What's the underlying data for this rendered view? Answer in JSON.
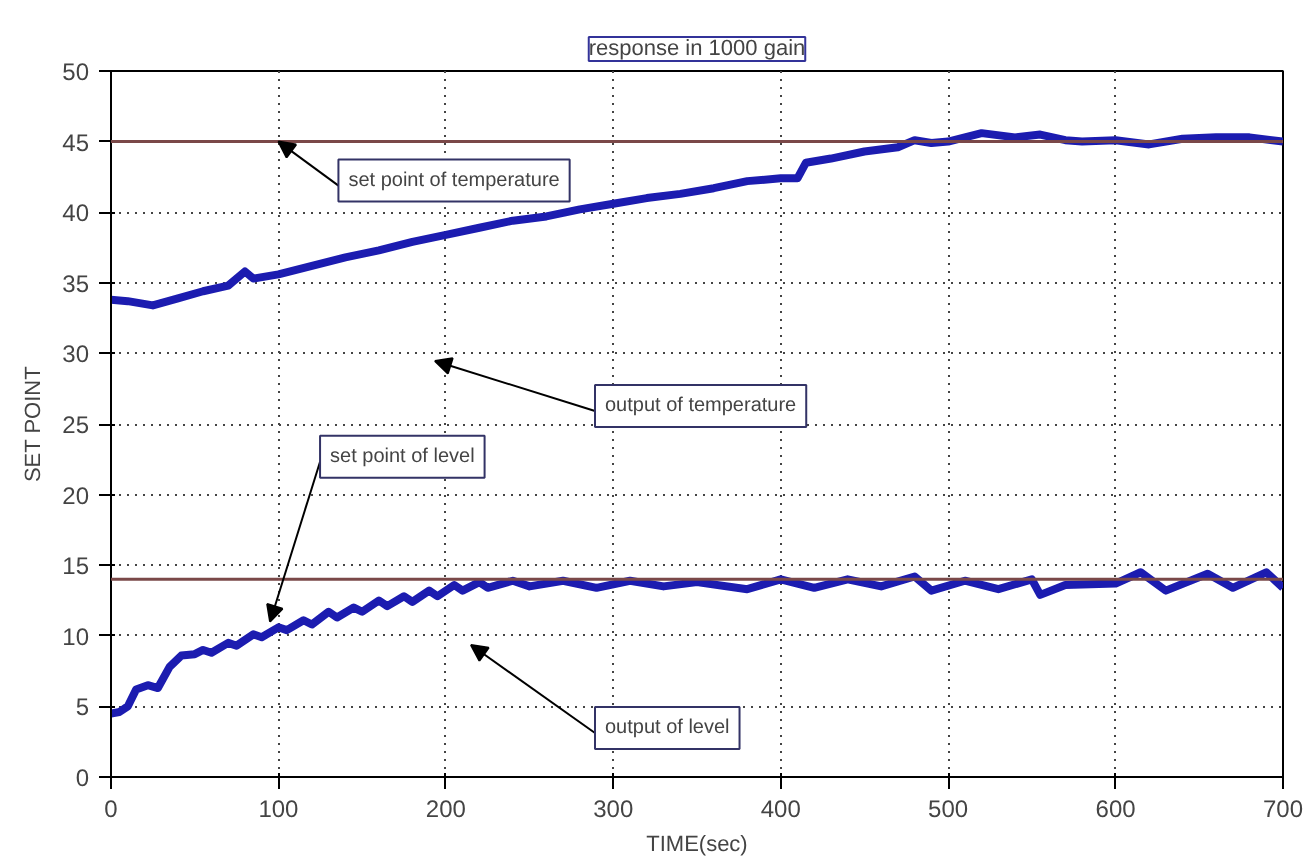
{
  "chart_data": {
    "type": "line",
    "title": "response in 1000 gain",
    "xlabel": "TIME(sec)",
    "ylabel": "SET POINT",
    "xlim": [
      0,
      700
    ],
    "ylim": [
      0,
      50
    ],
    "xticks": [
      0,
      100,
      200,
      300,
      400,
      500,
      600,
      700
    ],
    "yticks": [
      0,
      5,
      10,
      15,
      20,
      25,
      30,
      35,
      40,
      45,
      50
    ],
    "grid": true,
    "line_style": "solid",
    "marker": "none",
    "series": [
      {
        "color": "#1c1cb0",
        "x": [
          0,
          10,
          25,
          40,
          55,
          70,
          80,
          85,
          100,
          120,
          140,
          160,
          180,
          200,
          220,
          240,
          260,
          280,
          300,
          320,
          340,
          360,
          380,
          400,
          410,
          415,
          430,
          450,
          470,
          480,
          490,
          500,
          520,
          540,
          555,
          570,
          580,
          600,
          620,
          640,
          660,
          680,
          700
        ],
        "values": [
          33.8,
          33.7,
          33.4,
          33.9,
          34.4,
          34.8,
          35.8,
          35.3,
          35.6,
          36.2,
          36.8,
          37.3,
          37.9,
          38.4,
          38.9,
          39.4,
          39.7,
          40.2,
          40.6,
          41.0,
          41.3,
          41.7,
          42.2,
          42.4,
          42.4,
          43.5,
          43.8,
          44.3,
          44.6,
          45.1,
          44.9,
          45.0,
          45.6,
          45.3,
          45.5,
          45.1,
          45.0,
          45.1,
          44.8,
          45.2,
          45.3,
          45.3,
          45.0
        ]
      },
      {
        "color": "#1c1cb0",
        "x": [
          0,
          5,
          10,
          15,
          22,
          28,
          35,
          42,
          50,
          55,
          60,
          70,
          75,
          85,
          90,
          100,
          105,
          115,
          120,
          130,
          135,
          145,
          150,
          160,
          165,
          175,
          180,
          190,
          195,
          205,
          210,
          220,
          225,
          240,
          250,
          270,
          290,
          310,
          330,
          350,
          380,
          400,
          420,
          440,
          460,
          480,
          490,
          510,
          530,
          550,
          555,
          570,
          600,
          615,
          630,
          655,
          670,
          690,
          700
        ],
        "values": [
          4.5,
          4.6,
          5.0,
          6.2,
          6.5,
          6.3,
          7.8,
          8.6,
          8.7,
          9.0,
          8.8,
          9.5,
          9.3,
          10.1,
          9.9,
          10.6,
          10.4,
          11.1,
          10.8,
          11.7,
          11.3,
          12.0,
          11.7,
          12.5,
          12.1,
          12.8,
          12.4,
          13.2,
          12.8,
          13.6,
          13.2,
          13.8,
          13.4,
          13.9,
          13.5,
          13.9,
          13.4,
          13.9,
          13.5,
          13.8,
          13.3,
          14.0,
          13.4,
          14.0,
          13.5,
          14.2,
          13.2,
          13.9,
          13.3,
          14.0,
          12.9,
          13.6,
          13.7,
          14.5,
          13.2,
          14.4,
          13.4,
          14.5,
          13.4
        ]
      }
    ],
    "ref_lines": [
      {
        "axis": "y",
        "value": 45,
        "label": null,
        "color": "#7a4848"
      },
      {
        "axis": "y",
        "value": 14,
        "label": null,
        "color": "#7a4848"
      }
    ],
    "annotations": [
      {
        "text": "set point of temperature",
        "x": 100,
        "y": 45
      },
      "output of temperature",
      {
        "text": "set point of level",
        "x": 95,
        "y": 11
      },
      "output of level"
    ]
  }
}
